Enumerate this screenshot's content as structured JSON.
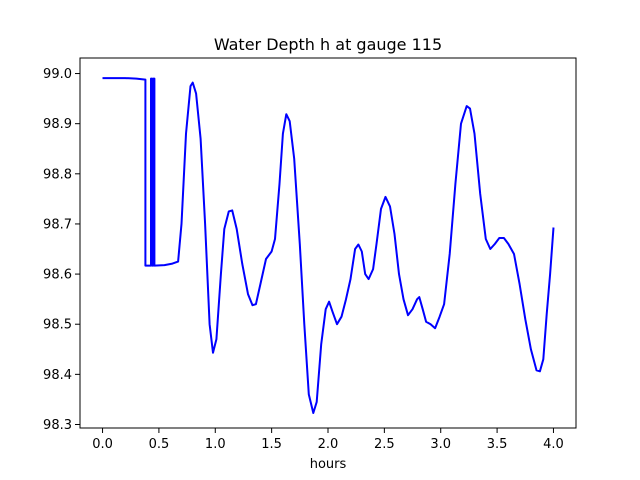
{
  "chart_data": {
    "type": "line",
    "title": "Water Depth h at gauge 115",
    "xlabel": "hours",
    "ylabel": "",
    "xlim": [
      -0.2,
      4.2
    ],
    "ylim": [
      98.293,
      99.031
    ],
    "xticks": [
      0.0,
      0.5,
      1.0,
      1.5,
      2.0,
      2.5,
      3.0,
      3.5,
      4.0
    ],
    "xtick_labels": [
      "0.0",
      "0.5",
      "1.0",
      "1.5",
      "2.0",
      "2.5",
      "3.0",
      "3.5",
      "4.0"
    ],
    "yticks": [
      98.3,
      98.4,
      98.5,
      98.6,
      98.7,
      98.8,
      98.9,
      99.0
    ],
    "ytick_labels": [
      "98.3",
      "98.4",
      "98.5",
      "98.6",
      "98.7",
      "98.8",
      "98.9",
      "99.0"
    ],
    "grid": false,
    "legend": "none",
    "series": [
      {
        "color": "#0000ff",
        "points": [
          [
            0.0,
            98.991
          ],
          [
            0.2,
            98.991
          ],
          [
            0.3,
            98.99
          ],
          [
            0.38,
            98.988
          ],
          [
            0.38,
            98.617
          ],
          [
            0.43,
            98.617
          ],
          [
            0.43,
            98.99
          ],
          [
            0.44,
            98.99
          ],
          [
            0.44,
            98.617
          ],
          [
            0.45,
            98.617
          ],
          [
            0.45,
            98.99
          ],
          [
            0.46,
            98.99
          ],
          [
            0.46,
            98.617
          ],
          [
            0.55,
            98.618
          ],
          [
            0.62,
            98.621
          ],
          [
            0.67,
            98.625
          ],
          [
            0.7,
            98.7
          ],
          [
            0.74,
            98.88
          ],
          [
            0.78,
            98.975
          ],
          [
            0.8,
            98.982
          ],
          [
            0.83,
            98.96
          ],
          [
            0.87,
            98.87
          ],
          [
            0.91,
            98.7
          ],
          [
            0.95,
            98.5
          ],
          [
            0.98,
            98.443
          ],
          [
            1.01,
            98.47
          ],
          [
            1.05,
            98.6
          ],
          [
            1.08,
            98.69
          ],
          [
            1.12,
            98.725
          ],
          [
            1.15,
            98.727
          ],
          [
            1.19,
            98.69
          ],
          [
            1.24,
            98.62
          ],
          [
            1.29,
            98.56
          ],
          [
            1.33,
            98.538
          ],
          [
            1.36,
            98.54
          ],
          [
            1.4,
            98.58
          ],
          [
            1.45,
            98.63
          ],
          [
            1.5,
            98.645
          ],
          [
            1.53,
            98.67
          ],
          [
            1.57,
            98.78
          ],
          [
            1.6,
            98.88
          ],
          [
            1.63,
            98.919
          ],
          [
            1.66,
            98.905
          ],
          [
            1.7,
            98.83
          ],
          [
            1.75,
            98.66
          ],
          [
            1.79,
            98.5
          ],
          [
            1.83,
            98.36
          ],
          [
            1.87,
            98.323
          ],
          [
            1.9,
            98.345
          ],
          [
            1.94,
            98.46
          ],
          [
            1.98,
            98.53
          ],
          [
            2.01,
            98.545
          ],
          [
            2.04,
            98.525
          ],
          [
            2.08,
            98.5
          ],
          [
            2.12,
            98.515
          ],
          [
            2.16,
            98.55
          ],
          [
            2.2,
            98.59
          ],
          [
            2.24,
            98.65
          ],
          [
            2.27,
            98.659
          ],
          [
            2.3,
            98.645
          ],
          [
            2.33,
            98.6
          ],
          [
            2.36,
            98.59
          ],
          [
            2.4,
            98.61
          ],
          [
            2.43,
            98.66
          ],
          [
            2.47,
            98.73
          ],
          [
            2.51,
            98.754
          ],
          [
            2.55,
            98.735
          ],
          [
            2.59,
            98.68
          ],
          [
            2.63,
            98.6
          ],
          [
            2.67,
            98.55
          ],
          [
            2.71,
            98.518
          ],
          [
            2.75,
            98.53
          ],
          [
            2.79,
            98.55
          ],
          [
            2.81,
            98.554
          ],
          [
            2.84,
            98.53
          ],
          [
            2.87,
            98.505
          ],
          [
            2.91,
            98.5
          ],
          [
            2.95,
            98.492
          ],
          [
            2.99,
            98.515
          ],
          [
            3.03,
            98.54
          ],
          [
            3.08,
            98.64
          ],
          [
            3.13,
            98.78
          ],
          [
            3.18,
            98.9
          ],
          [
            3.23,
            98.935
          ],
          [
            3.26,
            98.93
          ],
          [
            3.3,
            98.88
          ],
          [
            3.35,
            98.76
          ],
          [
            3.4,
            98.67
          ],
          [
            3.44,
            98.65
          ],
          [
            3.48,
            98.66
          ],
          [
            3.52,
            98.672
          ],
          [
            3.56,
            98.672
          ],
          [
            3.6,
            98.66
          ],
          [
            3.65,
            98.64
          ],
          [
            3.7,
            98.58
          ],
          [
            3.75,
            98.51
          ],
          [
            3.8,
            98.45
          ],
          [
            3.85,
            98.408
          ],
          [
            3.88,
            98.406
          ],
          [
            3.91,
            98.43
          ],
          [
            3.94,
            98.52
          ],
          [
            3.97,
            98.6
          ],
          [
            4.0,
            98.693
          ]
        ]
      }
    ]
  }
}
